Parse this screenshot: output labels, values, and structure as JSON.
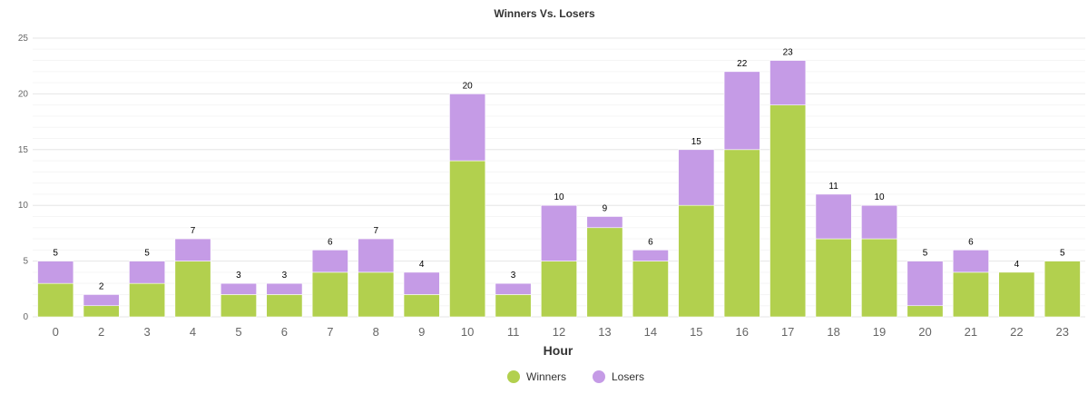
{
  "chart_data": {
    "type": "bar",
    "stacked": true,
    "title": "Winners Vs. Losers",
    "xlabel": "Hour",
    "ylabel": "",
    "ylim": [
      0,
      25
    ],
    "yticks": [
      "0",
      "5",
      "10",
      "15",
      "20",
      "25"
    ],
    "grid": true,
    "legend_position": "bottom-center",
    "categories": [
      "0",
      "2",
      "3",
      "4",
      "5",
      "6",
      "7",
      "8",
      "9",
      "10",
      "11",
      "12",
      "13",
      "14",
      "15",
      "16",
      "17",
      "18",
      "19",
      "20",
      "21",
      "22",
      "23"
    ],
    "series": [
      {
        "name": "Winners",
        "color": "#b2d04e",
        "values": [
          3,
          1,
          3,
          5,
          2,
          2,
          4,
          4,
          2,
          14,
          2,
          5,
          8,
          5,
          10,
          15,
          19,
          7,
          7,
          1,
          4,
          4,
          5
        ]
      },
      {
        "name": "Losers",
        "color": "#c59be6",
        "values": [
          2,
          1,
          2,
          2,
          1,
          1,
          2,
          3,
          2,
          6,
          1,
          5,
          1,
          1,
          5,
          7,
          4,
          4,
          3,
          4,
          2,
          0,
          0
        ]
      }
    ],
    "totals": [
      "5",
      "2",
      "5",
      "7",
      "3",
      "3",
      "6",
      "7",
      "4",
      "20",
      "3",
      "10",
      "9",
      "6",
      "15",
      "22",
      "23",
      "11",
      "10",
      "5",
      "6",
      "4",
      "5"
    ]
  }
}
